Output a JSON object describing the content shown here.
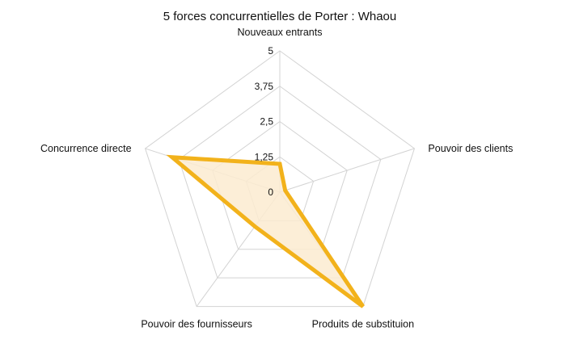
{
  "chart_data": {
    "type": "radar",
    "title": "5 forces concurrentielles de Porter : Whaou",
    "axes": [
      "Nouveaux entrants",
      "Pouvoir des clients",
      "Produits de substituion",
      "Pouvoir des fournisseurs",
      "Concurrence directe"
    ],
    "ticks": [
      "0",
      "1,25",
      "2,5",
      "3,75",
      "5"
    ],
    "range": [
      0,
      5
    ],
    "grid": true,
    "series": [
      {
        "values": [
          1.0,
          0.2,
          5.0,
          1.5,
          4.0
        ],
        "color": "#f2b21b",
        "fill": "#fcebd0"
      }
    ]
  }
}
